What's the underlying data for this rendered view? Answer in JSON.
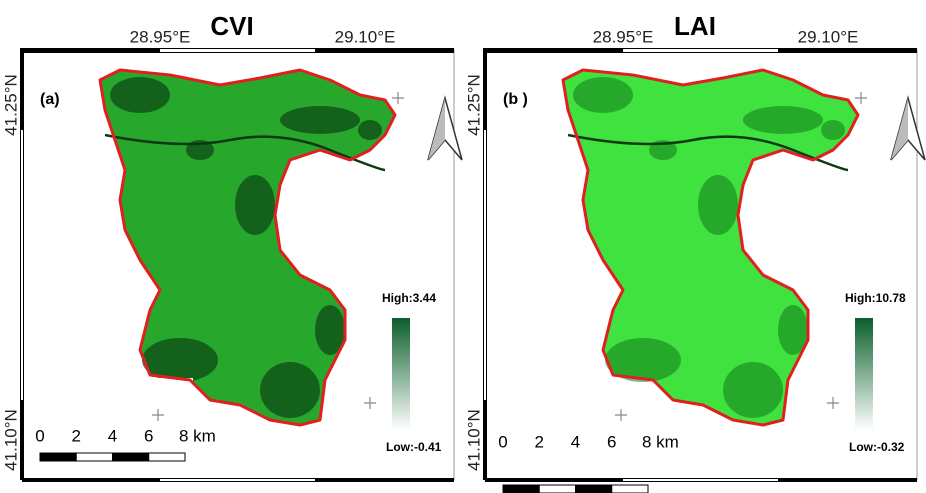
{
  "panels": [
    {
      "title": "CVI",
      "panel_label": "(a)",
      "lon_labels": [
        "28.95°E",
        "29.10°E"
      ],
      "lat_labels": [
        "41.25°N",
        "41.10°N"
      ],
      "scale_labels": [
        "0",
        "2",
        "4",
        "6",
        "8 km"
      ],
      "legend": {
        "high": "High:3.44",
        "low": "Low:-0.41"
      }
    },
    {
      "title": "LAI",
      "panel_label": "(b )",
      "lon_labels": [
        "28.95°E",
        "29.10°E"
      ],
      "lat_labels": [
        "41.25°N",
        "41.10°N"
      ],
      "scale_labels": [
        "0",
        "2",
        "4",
        "6",
        "8 km"
      ],
      "legend": {
        "high": "High:10.78",
        "low": "Low:-0.32"
      }
    }
  ]
}
